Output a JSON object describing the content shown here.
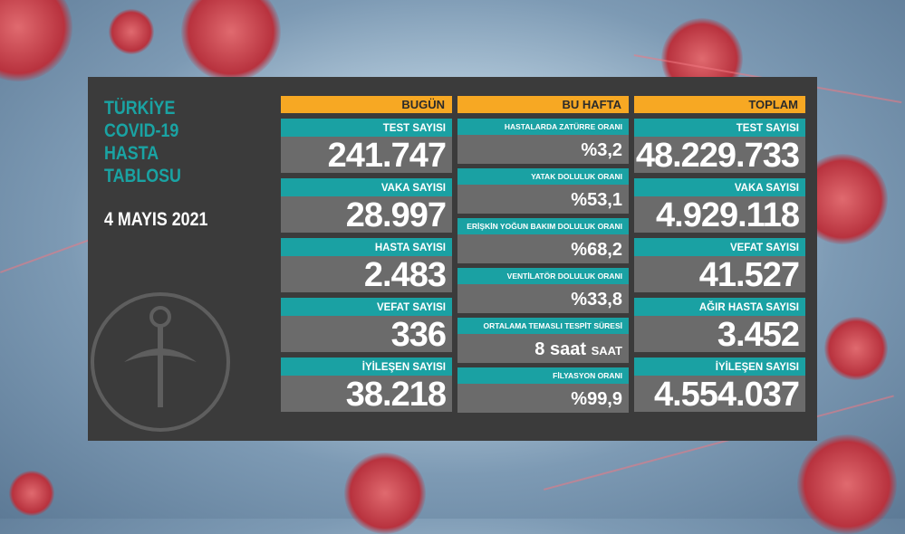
{
  "title_lines": [
    "TÜRKİYE",
    "COVID-19",
    "HASTA",
    "TABLOSU"
  ],
  "date": "4 MAYIS 2021",
  "colors": {
    "panel": "#3b3b3b",
    "teal": "#1aa1a3",
    "orange": "#f7a823",
    "value_bg": "#6b6b6b"
  },
  "today": {
    "header": "BUGÜN",
    "items": [
      {
        "label": "TEST SAYISI",
        "value": "241.747"
      },
      {
        "label": "VAKA SAYISI",
        "value": "28.997"
      },
      {
        "label": "HASTA SAYISI",
        "value": "2.483"
      },
      {
        "label": "VEFAT SAYISI",
        "value": "336"
      },
      {
        "label": "İYİLEŞEN SAYISI",
        "value": "38.218"
      }
    ]
  },
  "week": {
    "header": "BU HAFTA",
    "items": [
      {
        "label": "HASTALARDA ZATÜRRE ORANI",
        "value": "%3,2"
      },
      {
        "label": "YATAK DOLULUK ORANI",
        "value": "%53,1"
      },
      {
        "label": "ERİŞKİN YOĞUN BAKIM DOLULUK ORANI",
        "value": "%68,2"
      },
      {
        "label": "VENTİLATÖR DOLULUK ORANI",
        "value": "%33,8"
      },
      {
        "label": "ORTALAMA TEMASLI TESPİT SÜRESİ",
        "value": "8 saat",
        "unit": "SAAT"
      },
      {
        "label": "FİLYASYON ORANI",
        "value": "%99,9"
      }
    ]
  },
  "total": {
    "header": "TOPLAM",
    "items": [
      {
        "label": "TEST SAYISI",
        "value": "48.229.733"
      },
      {
        "label": "VAKA SAYISI",
        "value": "4.929.118"
      },
      {
        "label": "VEFAT SAYISI",
        "value": "41.527"
      },
      {
        "label": "AĞIR HASTA SAYISI",
        "value": "3.452"
      },
      {
        "label": "İYİLEŞEN SAYISI",
        "value": "4.554.037"
      }
    ]
  }
}
